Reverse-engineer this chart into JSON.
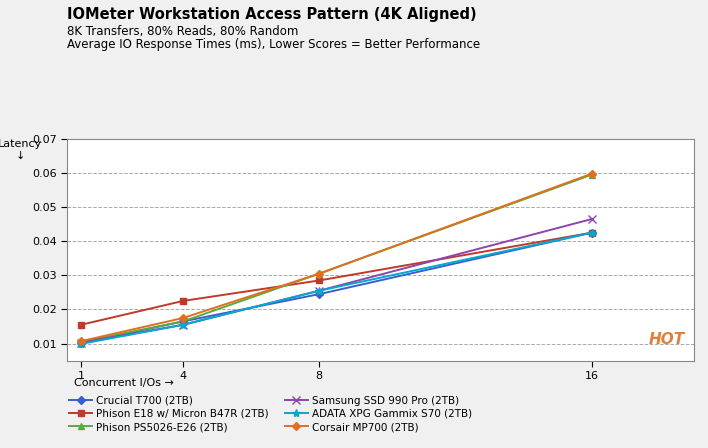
{
  "title": "IOMeter Workstation Access Pattern (4K Aligned)",
  "subtitle1": "8K Transfers, 80% Reads, 80% Random",
  "subtitle2": "Average IO Response Times (ms), Lower Scores = Better Performance",
  "xlabel": "Concurrent I/Os →",
  "ylabel": "Latency\n↓",
  "x": [
    1,
    4,
    8,
    16
  ],
  "series": [
    {
      "label": "Crucial T700 (2TB)",
      "color": "#3a5fcd",
      "marker": "D",
      "markersize": 4,
      "values": [
        0.0101,
        0.0165,
        0.0245,
        0.0425
      ]
    },
    {
      "label": "Phison E18 w/ Micron B47R (2TB)",
      "color": "#c0392b",
      "marker": "s",
      "markersize": 4,
      "values": [
        0.0155,
        0.0225,
        0.0285,
        0.0425
      ]
    },
    {
      "label": "Phison PS5026-E26 (2TB)",
      "color": "#5aab3f",
      "marker": "^",
      "markersize": 5,
      "values": [
        0.0105,
        0.0165,
        0.0305,
        0.0595
      ]
    },
    {
      "label": "Samsung SSD 990 Pro (2TB)",
      "color": "#8e44ad",
      "marker": "x",
      "markersize": 6,
      "values": [
        0.0103,
        0.0155,
        0.0255,
        0.0465
      ]
    },
    {
      "label": "ADATA XPG Gammix S70 (2TB)",
      "color": "#00aacc",
      "marker": "*",
      "markersize": 6,
      "values": [
        0.0099,
        0.0155,
        0.0255,
        0.0425
      ]
    },
    {
      "label": "Corsair MP700 (2TB)",
      "color": "#e07020",
      "marker": "D",
      "markersize": 4,
      "values": [
        0.0107,
        0.0175,
        0.0305,
        0.0598
      ]
    }
  ],
  "ylim": [
    0.005,
    0.07
  ],
  "yticks": [
    0.01,
    0.02,
    0.03,
    0.04,
    0.05,
    0.06,
    0.07
  ],
  "background_color": "#f0f0f0",
  "plot_background": "#ffffff",
  "grid_color": "#aaaaaa",
  "linewidth": 1.4,
  "legend_fontsize": 7.5,
  "title_fontsize": 10.5,
  "subtitle_fontsize": 8.5,
  "axis_fontsize": 8,
  "tick_fontsize": 8
}
